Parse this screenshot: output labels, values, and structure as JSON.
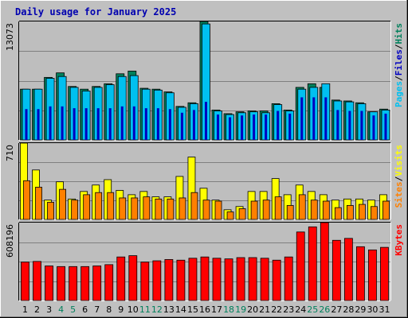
{
  "chart_data": {
    "title": "Daily usage for January 2025",
    "type": "bar",
    "categories": [
      "1",
      "2",
      "3",
      "4",
      "5",
      "6",
      "7",
      "8",
      "9",
      "10",
      "11",
      "12",
      "13",
      "14",
      "15",
      "16",
      "17",
      "18",
      "19",
      "20",
      "21",
      "22",
      "23",
      "24",
      "25",
      "26",
      "27",
      "28",
      "29",
      "30",
      "31"
    ],
    "weekend_days": [
      "4",
      "5",
      "11",
      "12",
      "18",
      "19",
      "25",
      "26"
    ],
    "grid": true,
    "colors": {
      "background": "#c0c0c0",
      "plot_background": "#bebebe",
      "title": "#0000b0",
      "hits": "#00805c",
      "files": "#0000c0",
      "pages": "#00c0f0",
      "visits": "#ffff00",
      "sites": "#ff8000",
      "kbytes": "#ff0000",
      "weekday_label": "#000000",
      "weekend_label": "#00805c"
    },
    "panels": [
      {
        "name": "hits-files-pages",
        "max_label": "13073",
        "ylim": [
          0,
          13073
        ],
        "legend": [
          {
            "text": "Pages",
            "color": "#00c0f0"
          },
          {
            "text": "/",
            "color": "#000000"
          },
          {
            "text": "Files",
            "color": "#0000c0"
          },
          {
            "text": "/",
            "color": "#000000"
          },
          {
            "text": "Hits",
            "color": "#00805c"
          }
        ],
        "series": [
          {
            "name": "Hits",
            "color": "#00805c",
            "values": [
              5600,
              5600,
              6900,
              7400,
              5900,
              5600,
              5900,
              6200,
              7300,
              7600,
              5700,
              5600,
              5300,
              3700,
              4100,
              13073,
              3300,
              2900,
              3100,
              3200,
              3200,
              4000,
              3300,
              5800,
              6200,
              5800,
              4400,
              4300,
              4100,
              3100,
              3400
            ]
          },
          {
            "name": "Files",
            "color": "#0000c0",
            "values": [
              3400,
              3400,
              3700,
              3700,
              3500,
              3500,
              3500,
              3500,
              3700,
              3700,
              3500,
              3500,
              3400,
              3000,
              3300,
              4200,
              2800,
              2500,
              2700,
              2800,
              2800,
              3200,
              2900,
              4700,
              4700,
              4700,
              3300,
              3200,
              3200,
              2700,
              2900
            ]
          },
          {
            "name": "Pages",
            "color": "#00c0f0",
            "values": [
              5600,
              5600,
              6800,
              7000,
              5800,
              5400,
              5800,
              6100,
              7000,
              7100,
              5600,
              5500,
              5200,
              3600,
              4000,
              12800,
              3200,
              2800,
              3000,
              3100,
              3000,
              3900,
              3200,
              5600,
              5800,
              6200,
              4300,
              4200,
              4000,
              3100,
              3300
            ]
          }
        ]
      },
      {
        "name": "visits-sites",
        "max_label": "710",
        "ylim": [
          0,
          710
        ],
        "legend": [
          {
            "text": "Sites",
            "color": "#ff8000"
          },
          {
            "text": "/",
            "color": "#000000"
          },
          {
            "text": "Visits",
            "color": "#ffff00"
          }
        ],
        "series": [
          {
            "name": "Visits",
            "color": "#ffff00",
            "values": [
              710,
              460,
              180,
              350,
              190,
              260,
              320,
              370,
              270,
              230,
              260,
              210,
              210,
              400,
              580,
              290,
              180,
              90,
              120,
              260,
              260,
              380,
              230,
              320,
              260,
              230,
              180,
              190,
              190,
              180,
              230
            ]
          },
          {
            "name": "Sites",
            "color": "#ff8000",
            "values": [
              360,
              300,
              160,
              280,
              180,
              230,
              250,
              250,
              200,
              200,
              210,
              190,
              190,
              200,
              250,
              180,
              170,
              70,
              100,
              170,
              180,
              210,
              130,
              230,
              180,
              170,
              110,
              130,
              140,
              120,
              170
            ]
          }
        ]
      },
      {
        "name": "kbytes",
        "max_label": "608196",
        "ylim": [
          0,
          608196
        ],
        "legend": [
          {
            "text": "KBytes",
            "color": "#ff0000"
          }
        ],
        "series": [
          {
            "name": "KBytes",
            "color": "#ff0000",
            "values": [
              300000,
              305000,
              270000,
              265000,
              265000,
              265000,
              270000,
              280000,
              340000,
              350000,
              300000,
              310000,
              320000,
              315000,
              330000,
              340000,
              330000,
              325000,
              335000,
              335000,
              330000,
              315000,
              340000,
              535000,
              575000,
              608196,
              470000,
              485000,
              420000,
              395000,
              415000
            ]
          }
        ]
      }
    ]
  }
}
